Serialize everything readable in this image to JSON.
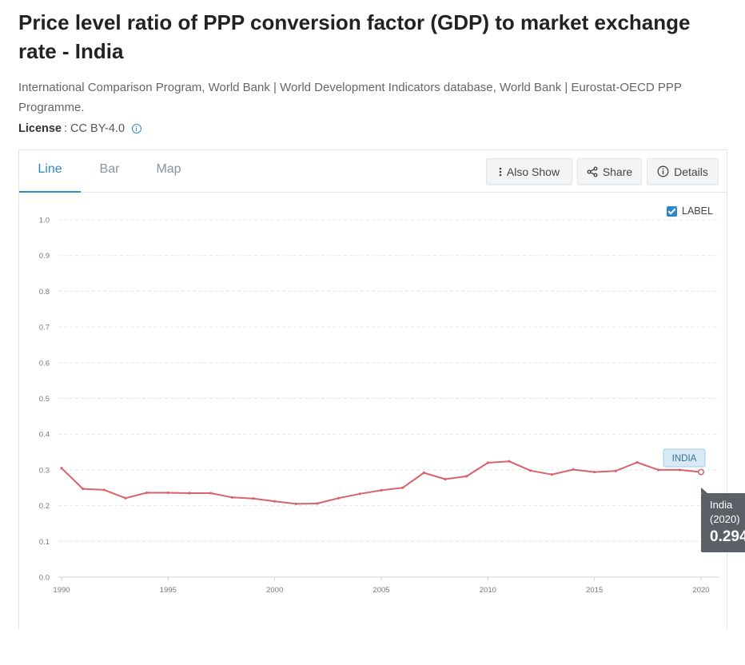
{
  "header": {
    "title": "Price level ratio of PPP conversion factor (GDP) to market exchange rate - India",
    "source": "International Comparison Program, World Bank | World Development Indicators database, World Bank | Eurostat-OECD PPP Programme.",
    "license_label": "License",
    "license_value": ": CC BY-4.0"
  },
  "tabs": [
    {
      "label": "Line",
      "active": true
    },
    {
      "label": "Bar",
      "active": false
    },
    {
      "label": "Map",
      "active": false
    }
  ],
  "toolbar": {
    "also_show": "Also Show",
    "share": "Share",
    "details": "Details"
  },
  "label_toggle": {
    "label": "LABEL",
    "checked": true
  },
  "colors": {
    "accent": "#2f86c8",
    "series": "#d9636b",
    "badge_bg": "#d7e9f5"
  },
  "chart_data": {
    "type": "line",
    "title": "",
    "xlabel": "",
    "ylabel": "",
    "ylim": [
      0,
      1.0
    ],
    "yticks": [
      "0.0",
      "0.1",
      "0.2",
      "0.3",
      "0.4",
      "0.5",
      "0.6",
      "0.7",
      "0.8",
      "0.9",
      "1.0"
    ],
    "xticks": [
      "1990",
      "1995",
      "2000",
      "2005",
      "2010",
      "2015",
      "2020"
    ],
    "grid": true,
    "series": [
      {
        "name": "INDIA",
        "x": [
          1990,
          1991,
          1992,
          1993,
          1994,
          1995,
          1996,
          1997,
          1998,
          1999,
          2000,
          2001,
          2002,
          2003,
          2004,
          2005,
          2006,
          2007,
          2008,
          2009,
          2010,
          2011,
          2012,
          2013,
          2014,
          2015,
          2016,
          2017,
          2018,
          2019,
          2020
        ],
        "values": [
          0.305,
          0.247,
          0.244,
          0.221,
          0.236,
          0.236,
          0.235,
          0.235,
          0.223,
          0.22,
          0.212,
          0.205,
          0.206,
          0.221,
          0.233,
          0.243,
          0.25,
          0.292,
          0.274,
          0.282,
          0.32,
          0.324,
          0.298,
          0.287,
          0.301,
          0.294,
          0.297,
          0.321,
          0.3,
          0.3,
          0.294
        ]
      }
    ]
  },
  "tooltip": {
    "name": "India",
    "year": "(2020)",
    "value": "0.294"
  }
}
